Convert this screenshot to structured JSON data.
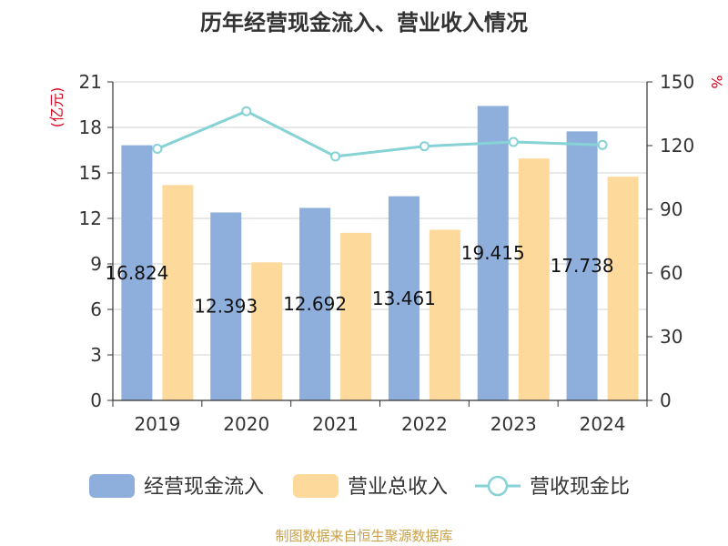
{
  "chart_data": {
    "type": "bar",
    "title": "历年经营现金流入、营业收入情况",
    "source": "制图数据来自恒生聚源数据库",
    "left_axis": {
      "label": "(亿元)",
      "ylim": [
        0,
        21
      ],
      "ticks": [
        "0",
        "3",
        "6",
        "9",
        "12",
        "15",
        "18",
        "21"
      ]
    },
    "right_axis": {
      "label": "%",
      "ylim": [
        0,
        150
      ],
      "ticks": [
        "0",
        "30",
        "60",
        "90",
        "120",
        "150"
      ]
    },
    "categories": [
      "2019",
      "2020",
      "2021",
      "2022",
      "2023",
      "2024"
    ],
    "series": [
      {
        "name": "经营现金流入",
        "type": "bar",
        "axis": "left",
        "color": "#8eaedc",
        "values": [
          16.824,
          12.393,
          12.692,
          13.461,
          19.415,
          17.738
        ],
        "labels": [
          "16.824",
          "12.393",
          "12.692",
          "13.461",
          "19.415",
          "17.738"
        ]
      },
      {
        "name": "营业总收入",
        "type": "bar",
        "axis": "left",
        "color": "#fdd99b",
        "values": [
          14.2,
          9.1,
          11.05,
          11.25,
          15.95,
          14.75
        ]
      },
      {
        "name": "营收现金比",
        "type": "line",
        "axis": "right",
        "color": "#86d2d5",
        "values": [
          118.5,
          136.2,
          114.9,
          119.7,
          121.7,
          120.3
        ]
      }
    ],
    "legend_position": "bottom",
    "grid": true
  }
}
